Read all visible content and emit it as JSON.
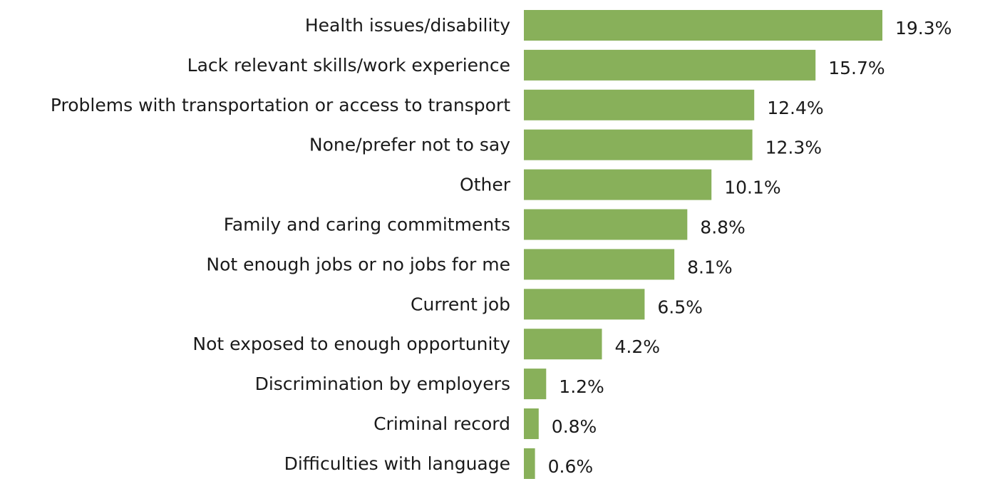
{
  "chart_data": {
    "type": "bar",
    "orientation": "horizontal",
    "title": "",
    "xlabel": "",
    "ylabel": "",
    "grid": false,
    "legend": "none",
    "bar_color": "#88b05a",
    "categories": [
      "Health issues/disability",
      "Lack relevant skills/work experience",
      "Problems with transportation or access to transport",
      "None/prefer not to say",
      "Other",
      "Family and caring commitments",
      "Not enough jobs or no jobs for me",
      "Current job",
      "Not exposed to enough opportunity",
      "Discrimination by employers",
      "Criminal record",
      "Difficulties with language"
    ],
    "values": [
      19.3,
      15.7,
      12.4,
      12.3,
      10.1,
      8.8,
      8.1,
      6.5,
      4.2,
      1.2,
      0.8,
      0.6
    ],
    "value_labels": [
      "19.3%",
      "15.7%",
      "12.4%",
      "12.3%",
      "10.1%",
      "8.8%",
      "8.1%",
      "6.5%",
      "4.2%",
      "1.2%",
      "0.8%",
      "0.6%"
    ],
    "xlim": [
      0,
      19.3
    ]
  }
}
